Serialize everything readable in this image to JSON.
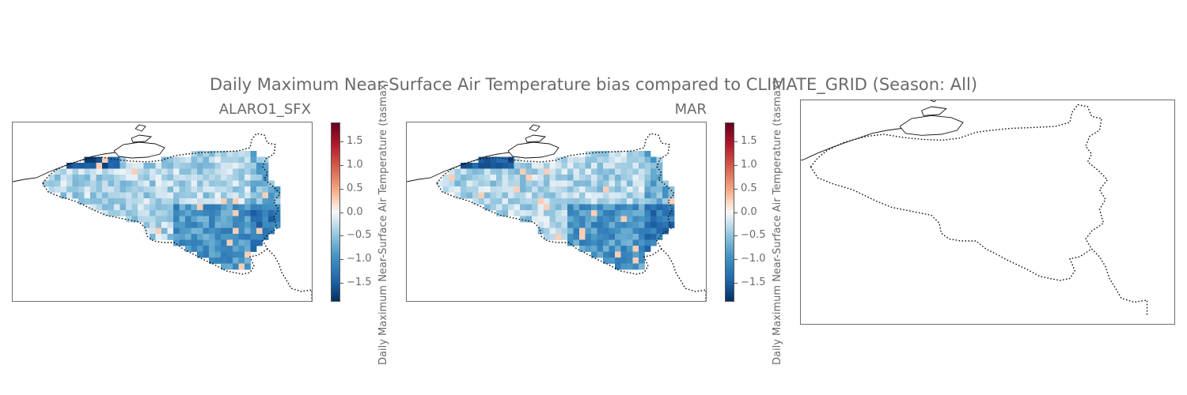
{
  "figure": {
    "suptitle": "Daily Maximum Near-Surface Air Temperature bias compared to CLIMATE_GRID (Season: All)"
  },
  "panels": [
    {
      "title": "ALARO1_SFX",
      "has_data": true,
      "colorbar": true
    },
    {
      "title": "MAR",
      "has_data": true,
      "colorbar": true
    },
    {
      "title": "",
      "has_data": false,
      "colorbar": false
    }
  ],
  "colorbar": {
    "label": "Daily Maximum Near-Surface Air Temperature (tasmax)",
    "ticks": [
      "1.5",
      "1.0",
      "0.5",
      "0.0",
      "−0.5",
      "−1.0",
      "−1.5"
    ],
    "tick_values": [
      1.5,
      1.0,
      0.5,
      0.0,
      -0.5,
      -1.0,
      -1.5
    ],
    "range": [
      -1.9,
      1.9
    ],
    "colormap": [
      "#053061",
      "#2166ac",
      "#4393c3",
      "#92c5de",
      "#d1e5f0",
      "#f7f7f7",
      "#fddbc7",
      "#f4a582",
      "#d6604d",
      "#b2182b",
      "#67001f"
    ]
  }
}
